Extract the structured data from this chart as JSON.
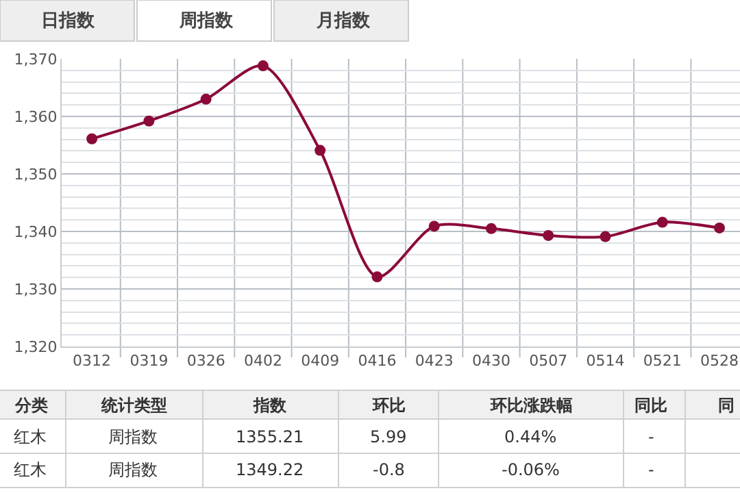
{
  "chart_data": {
    "type": "line",
    "categories": [
      "0312",
      "0319",
      "0326",
      "0402",
      "0409",
      "0416",
      "0423",
      "0430",
      "0507",
      "0514",
      "0521",
      "0528"
    ],
    "series": [
      {
        "color": "#8b0a3a",
        "values": [
          1356.1,
          1359.2,
          1363.0,
          1368.8,
          1354.1,
          1332.1,
          1340.9,
          1340.5,
          1339.3,
          1339.1,
          1341.6,
          1340.6
        ]
      }
    ],
    "ylim": [
      1320,
      1370
    ],
    "yticks": [
      {
        "value": 1320,
        "label": "1,320"
      },
      {
        "value": 1330,
        "label": "1,330"
      },
      {
        "value": 1340,
        "label": "1,340"
      },
      {
        "value": 1350,
        "label": "1,350"
      },
      {
        "value": 1360,
        "label": "1,360"
      },
      {
        "value": 1370,
        "label": "1,370"
      }
    ],
    "grid": true,
    "marker": "circle",
    "line_style": "solid",
    "legend": false,
    "annotations": [
      "日指数",
      "周指数",
      "月指数",
      "分类",
      "统计类型",
      "指数",
      "环比",
      "环比涨跌幅",
      "同比",
      "同",
      "红木",
      "周指数",
      "1355.21",
      "5.99",
      "0.44%",
      "-",
      "红木",
      "周指数",
      "1349.22",
      "-0.8",
      "-0.06%",
      "-"
    ]
  }
}
